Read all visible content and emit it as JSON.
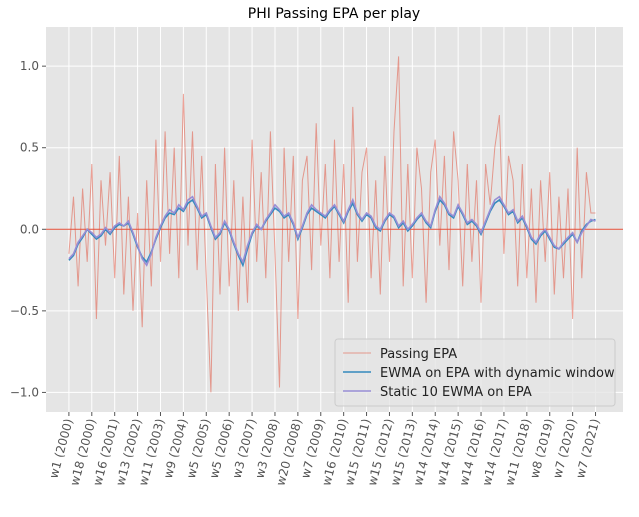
{
  "chart_data": {
    "type": "line",
    "title": "PHI Passing EPA per play",
    "x": [
      0,
      4,
      8,
      12,
      16,
      20,
      24,
      28,
      32,
      36,
      40,
      44,
      48,
      52,
      56,
      60,
      64,
      68,
      72,
      76,
      80,
      84,
      88,
      92,
      96,
      100,
      104,
      108,
      112,
      116,
      120,
      124,
      128,
      132,
      136,
      140,
      144,
      148,
      152,
      156,
      160,
      164,
      168,
      172,
      176,
      180,
      184,
      188,
      192,
      196,
      200,
      204,
      208,
      212,
      216,
      220,
      224,
      228,
      232,
      236,
      240,
      244,
      248,
      252,
      256,
      260,
      264,
      268,
      272,
      276,
      280,
      284,
      288,
      292,
      296,
      300,
      304,
      308,
      312,
      316,
      320,
      324,
      328,
      332,
      336,
      340,
      344,
      348,
      352,
      356,
      360,
      364,
      368,
      372,
      376,
      380,
      384,
      388,
      392,
      396,
      400,
      404,
      408,
      412,
      416,
      420,
      424,
      428,
      432,
      436,
      440,
      444,
      448,
      452,
      456,
      460
    ],
    "series": [
      {
        "name": "Passing EPA",
        "color": "#E24A33",
        "opacity": 0.5,
        "width": 1,
        "values": [
          -0.15,
          0.2,
          -0.35,
          0.25,
          -0.2,
          0.4,
          -0.55,
          0.3,
          -0.1,
          0.35,
          -0.3,
          0.45,
          -0.4,
          0.2,
          -0.5,
          0.1,
          -0.6,
          0.3,
          -0.35,
          0.55,
          -0.2,
          0.6,
          -0.15,
          0.5,
          -0.3,
          0.83,
          -0.1,
          0.6,
          -0.25,
          0.45,
          -0.3,
          -1.0,
          0.4,
          -0.4,
          0.5,
          -0.35,
          0.3,
          -0.5,
          0.2,
          -0.45,
          0.55,
          -0.2,
          0.35,
          -0.3,
          0.6,
          -0.15,
          -0.97,
          0.5,
          -0.2,
          0.45,
          -0.55,
          0.3,
          0.45,
          -0.25,
          0.65,
          -0.1,
          0.4,
          -0.3,
          0.55,
          -0.2,
          0.4,
          -0.45,
          0.75,
          -0.2,
          0.35,
          0.5,
          -0.3,
          0.3,
          -0.4,
          0.45,
          -0.2,
          0.6,
          1.06,
          -0.35,
          0.4,
          -0.3,
          0.5,
          0.25,
          -0.45,
          0.35,
          0.55,
          -0.1,
          0.45,
          -0.25,
          0.6,
          0.3,
          -0.35,
          0.4,
          -0.2,
          0.3,
          -0.45,
          0.4,
          0.15,
          0.5,
          0.7,
          -0.15,
          0.45,
          0.3,
          -0.35,
          0.4,
          -0.3,
          0.25,
          -0.45,
          0.3,
          -0.2,
          0.35,
          -0.4,
          0.2,
          -0.3,
          0.25,
          -0.55,
          0.5,
          -0.3,
          0.35,
          0.1,
          0.1
        ]
      },
      {
        "name": "EWMA on EPA with dynamic window",
        "color": "#348ABD",
        "opacity": 1,
        "width": 1.6,
        "values": [
          -0.19,
          -0.16,
          -0.09,
          -0.05,
          0.0,
          -0.03,
          -0.06,
          -0.04,
          0.0,
          -0.03,
          0.01,
          0.03,
          0.02,
          0.04,
          -0.03,
          -0.11,
          -0.17,
          -0.2,
          -0.14,
          -0.06,
          0.01,
          0.07,
          0.1,
          0.09,
          0.13,
          0.11,
          0.16,
          0.18,
          0.13,
          0.07,
          0.09,
          0.01,
          -0.06,
          -0.03,
          0.04,
          -0.01,
          -0.09,
          -0.16,
          -0.22,
          -0.12,
          -0.03,
          0.02,
          0.0,
          0.05,
          0.09,
          0.13,
          0.11,
          0.07,
          0.09,
          0.03,
          -0.06,
          0.01,
          0.09,
          0.13,
          0.11,
          0.09,
          0.07,
          0.11,
          0.14,
          0.09,
          0.04,
          0.11,
          0.16,
          0.09,
          0.05,
          0.09,
          0.07,
          0.01,
          -0.01,
          0.05,
          0.09,
          0.07,
          0.01,
          0.04,
          -0.01,
          0.02,
          0.06,
          0.09,
          0.04,
          0.01,
          0.11,
          0.18,
          0.15,
          0.09,
          0.07,
          0.14,
          0.09,
          0.03,
          0.05,
          0.02,
          -0.03,
          0.04,
          0.11,
          0.16,
          0.18,
          0.14,
          0.09,
          0.11,
          0.04,
          0.07,
          0.01,
          -0.06,
          -0.09,
          -0.04,
          -0.01,
          -0.06,
          -0.11,
          -0.12,
          -0.09,
          -0.06,
          -0.03,
          -0.08,
          -0.01,
          0.03,
          0.05,
          0.06
        ]
      },
      {
        "name": "Static 10 EWMA on EPA",
        "color": "#988ED5",
        "opacity": 1,
        "width": 1.6,
        "values": [
          -0.18,
          -0.15,
          -0.08,
          -0.04,
          0.0,
          -0.02,
          -0.05,
          -0.03,
          0.01,
          -0.02,
          0.02,
          0.04,
          0.02,
          0.05,
          -0.02,
          -0.1,
          -0.18,
          -0.22,
          -0.15,
          -0.05,
          0.02,
          0.08,
          0.12,
          0.1,
          0.15,
          0.12,
          0.18,
          0.2,
          0.14,
          0.08,
          0.1,
          0.02,
          -0.05,
          -0.02,
          0.05,
          0.0,
          -0.08,
          -0.15,
          -0.2,
          -0.1,
          -0.02,
          0.03,
          0.0,
          0.06,
          0.1,
          0.15,
          0.12,
          0.08,
          0.1,
          0.04,
          -0.05,
          0.02,
          0.1,
          0.15,
          0.12,
          0.1,
          0.08,
          0.12,
          0.15,
          0.1,
          0.05,
          0.12,
          0.18,
          0.1,
          0.06,
          0.1,
          0.08,
          0.02,
          0.0,
          0.06,
          0.1,
          0.08,
          0.02,
          0.05,
          0.0,
          0.03,
          0.07,
          0.1,
          0.05,
          0.02,
          0.12,
          0.2,
          0.16,
          0.1,
          0.08,
          0.15,
          0.1,
          0.04,
          0.06,
          0.03,
          -0.02,
          0.05,
          0.12,
          0.18,
          0.2,
          0.15,
          0.1,
          0.12,
          0.05,
          0.08,
          0.02,
          -0.05,
          -0.08,
          -0.03,
          0.0,
          -0.05,
          -0.1,
          -0.12,
          -0.08,
          -0.05,
          -0.02,
          -0.08,
          -0.02,
          0.02,
          0.06,
          0.05
        ]
      }
    ],
    "xlim": [
      -20,
      484
    ],
    "ylim": [
      -1.12,
      1.24
    ],
    "xticks": [
      {
        "value": 0,
        "label": "w1 (2000)"
      },
      {
        "value": 20,
        "label": "w18 (2000)"
      },
      {
        "value": 40,
        "label": "w16 (2001)"
      },
      {
        "value": 60,
        "label": "w13 (2002)"
      },
      {
        "value": 80,
        "label": "w11 (2003)"
      },
      {
        "value": 100,
        "label": "w9 (2004)"
      },
      {
        "value": 120,
        "label": "w5 (2005)"
      },
      {
        "value": 140,
        "label": "w5 (2006)"
      },
      {
        "value": 160,
        "label": "w3 (2007)"
      },
      {
        "value": 180,
        "label": "w3 (2008)"
      },
      {
        "value": 200,
        "label": "w20 (2008)"
      },
      {
        "value": 220,
        "label": "w7 (2009)"
      },
      {
        "value": 240,
        "label": "w16 (2010)"
      },
      {
        "value": 260,
        "label": "w15 (2011)"
      },
      {
        "value": 280,
        "label": "w15 (2012)"
      },
      {
        "value": 300,
        "label": "w15 (2013)"
      },
      {
        "value": 320,
        "label": "w14 (2014)"
      },
      {
        "value": 340,
        "label": "w14 (2015)"
      },
      {
        "value": 360,
        "label": "w14 (2016)"
      },
      {
        "value": 380,
        "label": "w14 (2017)"
      },
      {
        "value": 400,
        "label": "w11 (2018)"
      },
      {
        "value": 420,
        "label": "w8 (2019)"
      },
      {
        "value": 440,
        "label": "w7 (2020)"
      },
      {
        "value": 460,
        "label": "w7 (2021)"
      }
    ],
    "yticks": [
      {
        "value": -1,
        "label": "−1.0"
      },
      {
        "value": -0.5,
        "label": "−0.5"
      },
      {
        "value": 0,
        "label": "0.0"
      },
      0.5,
      {
        "value": 1,
        "label": "1.0"
      }
    ],
    "hline": {
      "value": 0,
      "color": "#E24A33"
    },
    "grid": true,
    "legend": "lower right"
  }
}
